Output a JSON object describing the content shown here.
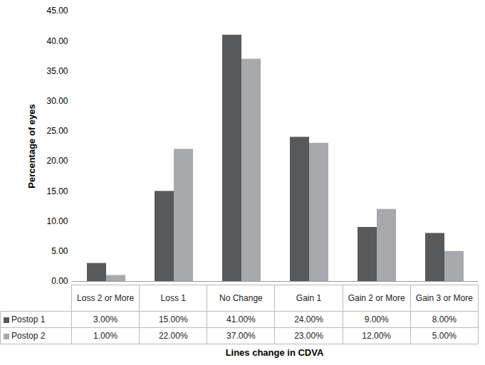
{
  "chart_data": {
    "type": "bar",
    "x_label": "Lines change in CDVA",
    "y_label": "Percentage of eyes",
    "categories": [
      "Loss 2 or More",
      "Loss 1",
      "No Change",
      "Gain 1",
      "Gain 2 or More",
      "Gain 3 or More"
    ],
    "series": [
      {
        "name": "Postop 1",
        "color": "#58595b",
        "values": [
          3,
          15,
          41,
          24,
          9,
          8
        ],
        "value_labels": [
          "3.00%",
          "15.00%",
          "41.00%",
          "24.00%",
          "9.00%",
          "8.00%"
        ]
      },
      {
        "name": "Postop 2",
        "color": "#a7a9ac",
        "values": [
          1,
          22,
          37,
          23,
          12,
          5
        ],
        "value_labels": [
          "1.00%",
          "22.00%",
          "37.00%",
          "23.00%",
          "12.00%",
          "5.00%"
        ]
      }
    ],
    "ylim": [
      0,
      45
    ],
    "yticks": [
      {
        "value": 0,
        "label": "0.00"
      },
      {
        "value": 5,
        "label": "5.00"
      },
      {
        "value": 10,
        "label": "10.00"
      },
      {
        "value": 15,
        "label": "15.00"
      },
      {
        "value": 20,
        "label": "20.00"
      },
      {
        "value": 25,
        "label": "25.00"
      },
      {
        "value": 30,
        "label": "30.00"
      },
      {
        "value": 35,
        "label": "35.00"
      },
      {
        "value": 40,
        "label": "40.00"
      },
      {
        "value": 45,
        "label": "45.00"
      }
    ],
    "grid": false
  }
}
